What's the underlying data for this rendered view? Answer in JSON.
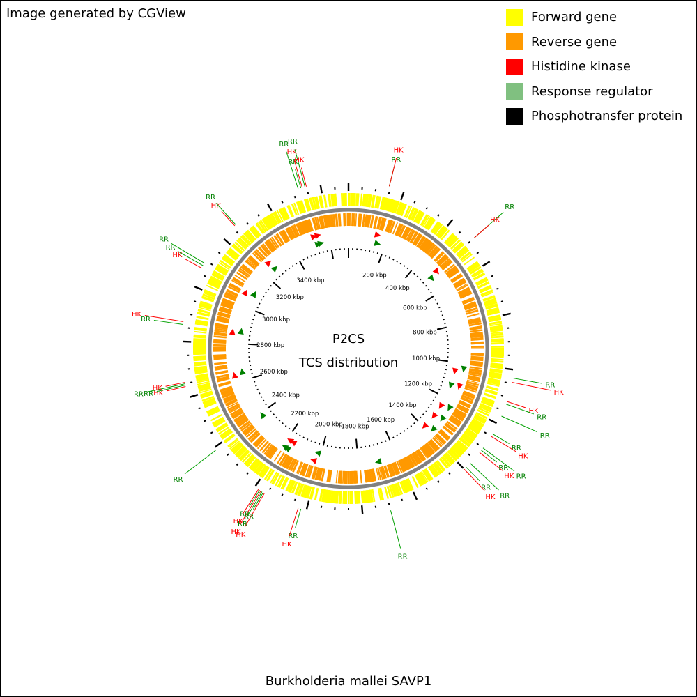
{
  "header": {
    "credit": "Image generated by CGView"
  },
  "legend": {
    "items": [
      {
        "label": "Forward gene",
        "color": "#ffff00"
      },
      {
        "label": "Reverse gene",
        "color": "#ff9900"
      },
      {
        "label": "Histidine kinase",
        "color": "#ff0000"
      },
      {
        "label": "Response regulator",
        "color": "#80c080"
      },
      {
        "label": "Phosphotransfer protein",
        "color": "#000000"
      }
    ]
  },
  "map": {
    "title_line1": "P2CS",
    "title_line2": "TCS distribution",
    "organism": "Burkholderia mallei SAVP1",
    "genome_kbp": 3700,
    "ruler_labels": [
      "200 kbp",
      "400 kbp",
      "600 kbp",
      "800 kbp",
      "1000 kbp",
      "1200 kbp",
      "1400 kbp",
      "1600 kbp",
      "1800 kbp",
      "2000 kbp",
      "2200 kbp",
      "2400 kbp",
      "2600 kbp",
      "2800 kbp",
      "3000 kbp",
      "3200 kbp",
      "3400 kbp"
    ],
    "colors": {
      "hk": "#ff0000",
      "rr": "#008000",
      "rr_line": "#00a000",
      "backbone": "#808080"
    },
    "tcs_labels": [
      {
        "text": "RR",
        "type": "rr",
        "pos_kbp": 145
      },
      {
        "text": "HK",
        "type": "hk",
        "pos_kbp": 145
      },
      {
        "text": "RR",
        "type": "rr",
        "pos_kbp": 500
      },
      {
        "text": "HK",
        "type": "hk",
        "pos_kbp": 500
      },
      {
        "text": "RR",
        "type": "rr",
        "pos_kbp": 1030
      },
      {
        "text": "HK",
        "type": "hk",
        "pos_kbp": 1045
      },
      {
        "text": "HK",
        "type": "hk",
        "pos_kbp": 1115
      },
      {
        "text": "RR",
        "type": "rr",
        "pos_kbp": 1125
      },
      {
        "text": "RR",
        "type": "rr",
        "pos_kbp": 1170
      },
      {
        "text": "RR",
        "type": "rr",
        "pos_kbp": 1240
      },
      {
        "text": "HK",
        "type": "hk",
        "pos_kbp": 1250
      },
      {
        "text": "RR",
        "type": "rr",
        "pos_kbp": 1300
      },
      {
        "text": "RR",
        "type": "rr",
        "pos_kbp": 1310
      },
      {
        "text": "HK",
        "type": "hk",
        "pos_kbp": 1320
      },
      {
        "text": "RR",
        "type": "rr",
        "pos_kbp": 1370
      },
      {
        "text": "RR",
        "type": "rr",
        "pos_kbp": 1390
      },
      {
        "text": "HK",
        "type": "hk",
        "pos_kbp": 1400
      },
      {
        "text": "RR",
        "type": "rr",
        "pos_kbp": 1700
      },
      {
        "text": "RR",
        "type": "rr",
        "pos_kbp": 2020
      },
      {
        "text": "HK",
        "type": "hk",
        "pos_kbp": 2030
      },
      {
        "text": "HK",
        "type": "hk",
        "pos_kbp": 2160
      },
      {
        "text": "RR",
        "type": "rr",
        "pos_kbp": 2165
      },
      {
        "text": "RR",
        "type": "rr",
        "pos_kbp": 2170
      },
      {
        "text": "HK",
        "type": "hk",
        "pos_kbp": 2175
      },
      {
        "text": "RR",
        "type": "rr",
        "pos_kbp": 2180
      },
      {
        "text": "HK",
        "type": "hk",
        "pos_kbp": 2185
      },
      {
        "text": "RR",
        "type": "rr",
        "pos_kbp": 2390
      },
      {
        "text": "HK",
        "type": "hk",
        "pos_kbp": 2640
      },
      {
        "text": "RR",
        "type": "rr",
        "pos_kbp": 2645
      },
      {
        "text": "RR",
        "type": "rr",
        "pos_kbp": 2650
      },
      {
        "text": "HK",
        "type": "hk",
        "pos_kbp": 2655
      },
      {
        "text": "RR",
        "type": "rr",
        "pos_kbp": 2860
      },
      {
        "text": "HK",
        "type": "hk",
        "pos_kbp": 2870
      },
      {
        "text": "HK",
        "type": "hk",
        "pos_kbp": 3070
      },
      {
        "text": "RR",
        "type": "rr",
        "pos_kbp": 3080
      },
      {
        "text": "RR",
        "type": "rr",
        "pos_kbp": 3090
      },
      {
        "text": "HK",
        "type": "hk",
        "pos_kbp": 3260
      },
      {
        "text": "RR",
        "type": "rr",
        "pos_kbp": 3265
      },
      {
        "text": "RR",
        "type": "rr",
        "pos_kbp": 3520
      },
      {
        "text": "RR",
        "type": "rr",
        "pos_kbp": 3530
      },
      {
        "text": "HK",
        "type": "hk",
        "pos_kbp": 3535
      },
      {
        "text": "RR",
        "type": "rr",
        "pos_kbp": 3545
      },
      {
        "text": "HK",
        "type": "hk",
        "pos_kbp": 3550
      }
    ],
    "tcs_marks": [
      {
        "type": "hk",
        "pos_kbp": 150
      },
      {
        "type": "rr",
        "pos_kbp": 160
      },
      {
        "type": "hk",
        "pos_kbp": 505
      },
      {
        "type": "rr",
        "pos_kbp": 515
      },
      {
        "type": "rr",
        "pos_kbp": 1030
      },
      {
        "type": "hk",
        "pos_kbp": 1050
      },
      {
        "type": "hk",
        "pos_kbp": 1120
      },
      {
        "type": "rr",
        "pos_kbp": 1130
      },
      {
        "type": "rr",
        "pos_kbp": 1240
      },
      {
        "type": "hk",
        "pos_kbp": 1255
      },
      {
        "type": "rr",
        "pos_kbp": 1305
      },
      {
        "type": "hk",
        "pos_kbp": 1320
      },
      {
        "type": "rr",
        "pos_kbp": 1375
      },
      {
        "type": "hk",
        "pos_kbp": 1395
      },
      {
        "type": "rr",
        "pos_kbp": 1700
      },
      {
        "type": "rr",
        "pos_kbp": 2020
      },
      {
        "type": "hk",
        "pos_kbp": 2030
      },
      {
        "type": "hk",
        "pos_kbp": 2165
      },
      {
        "type": "rr",
        "pos_kbp": 2175
      },
      {
        "type": "hk",
        "pos_kbp": 2185
      },
      {
        "type": "rr",
        "pos_kbp": 2190
      },
      {
        "type": "rr",
        "pos_kbp": 2390
      },
      {
        "type": "hk",
        "pos_kbp": 2640
      },
      {
        "type": "rr",
        "pos_kbp": 2650
      },
      {
        "type": "hk",
        "pos_kbp": 2860
      },
      {
        "type": "rr",
        "pos_kbp": 2870
      },
      {
        "type": "hk",
        "pos_kbp": 3070
      },
      {
        "type": "rr",
        "pos_kbp": 3085
      },
      {
        "type": "hk",
        "pos_kbp": 3260
      },
      {
        "type": "rr",
        "pos_kbp": 3265
      },
      {
        "type": "hk",
        "pos_kbp": 3525
      },
      {
        "type": "rr",
        "pos_kbp": 3535
      },
      {
        "type": "hk",
        "pos_kbp": 3545
      },
      {
        "type": "rr",
        "pos_kbp": 3550
      }
    ]
  }
}
